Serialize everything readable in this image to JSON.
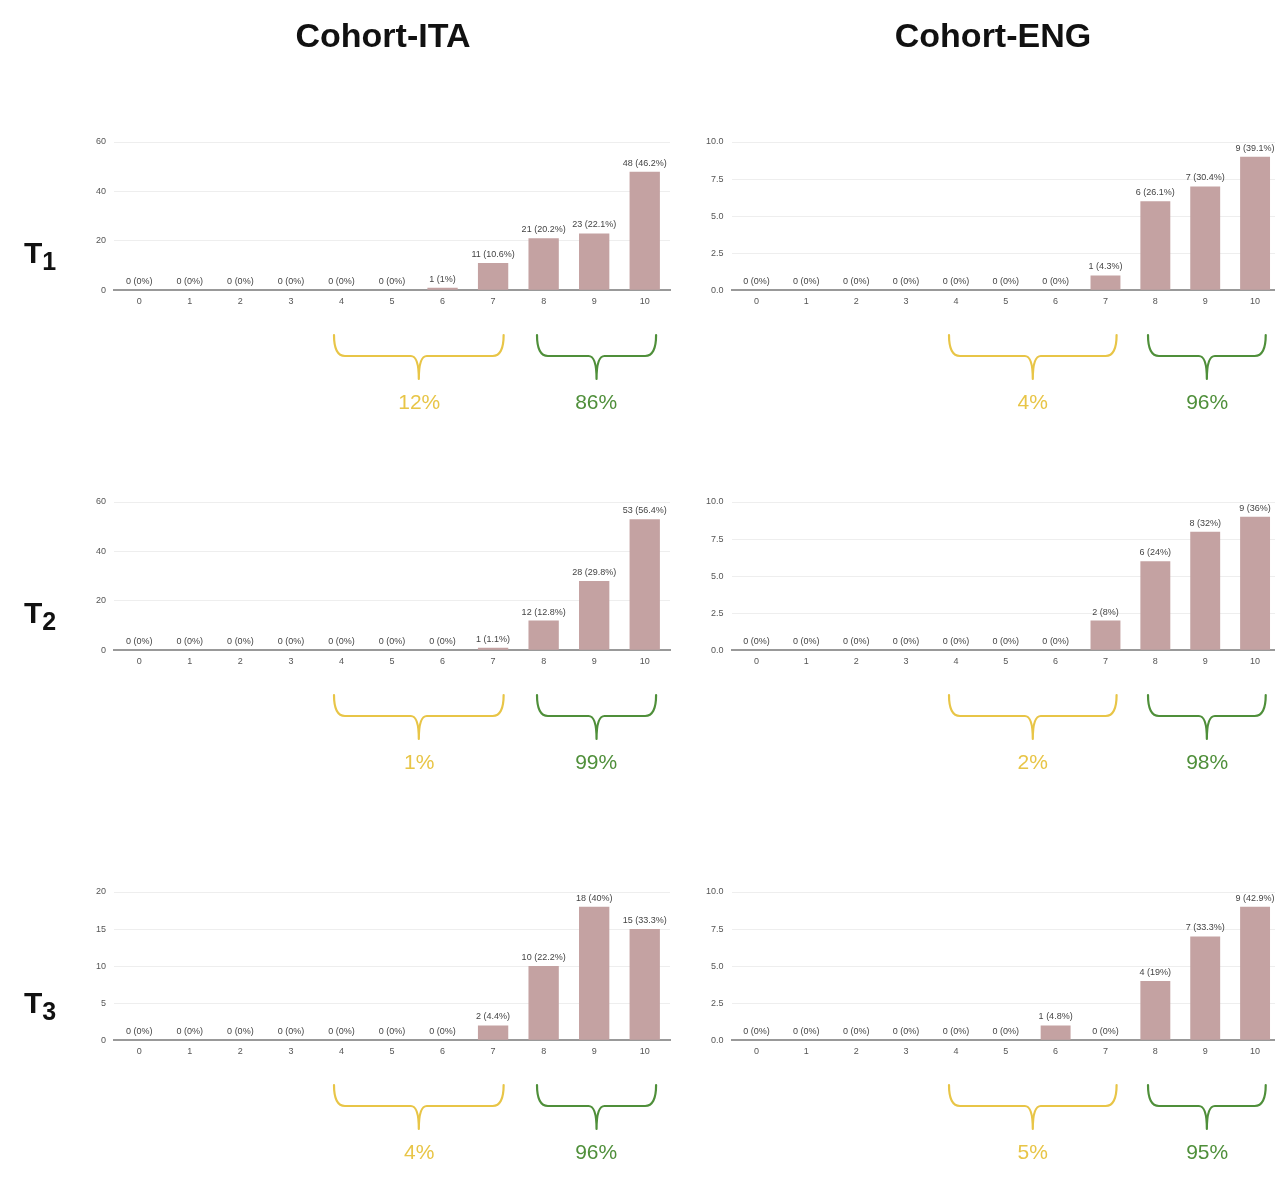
{
  "chart_data": [
    {
      "type": "bar",
      "title": "Cohort-ITA",
      "ylabel": "T$_{1}$",
      "categories": [
        "0",
        "1",
        "2",
        "3",
        "4",
        "5",
        "6",
        "7",
        "8",
        "9",
        "10"
      ],
      "color": "#c4a2a2",
      "values": [
        0,
        0,
        0,
        0,
        0,
        0,
        1,
        11,
        21,
        23,
        48
      ],
      "value_labels": [
        "0 (0%)",
        "0 (0%)",
        "0 (0%)",
        "0 (0%)",
        "0 (0%)",
        "0 (0%)",
        "1 (1%)",
        "11 (10.6%)",
        "21 (20.2%)",
        "23 (22.1%)",
        "48 (46.2%)"
      ],
      "ylim": [
        0,
        60
      ],
      "yticks": [
        0,
        20,
        40,
        60
      ],
      "grid": "y",
      "annotations": [
        "12%",
        "86%"
      ]
    },
    {
      "type": "bar",
      "title": "Cohort-ENG",
      "categories": [
        "0",
        "1",
        "2",
        "3",
        "4",
        "5",
        "6",
        "7",
        "8",
        "9",
        "10"
      ],
      "color": "#c4a2a2",
      "values": [
        0,
        0,
        0,
        0,
        0,
        0,
        0,
        1,
        6,
        7,
        9
      ],
      "value_labels": [
        "0 (0%)",
        "0 (0%)",
        "0 (0%)",
        "0 (0%)",
        "0 (0%)",
        "0 (0%)",
        "0 (0%)",
        "1 (4.3%)",
        "6 (26.1%)",
        "7 (30.4%)",
        "9 (39.1%)"
      ],
      "ylim": [
        0,
        10
      ],
      "yticks": [
        {
          "value": 0,
          "label": "0.0"
        },
        2.5,
        {
          "value": 5,
          "label": "5.0"
        },
        7.5,
        {
          "value": 10,
          "label": "10.0"
        }
      ],
      "grid": "y",
      "annotations": [
        "4%",
        "96%"
      ]
    },
    {
      "type": "bar",
      "ylabel": "T$_{2}$",
      "categories": [
        "0",
        "1",
        "2",
        "3",
        "4",
        "5",
        "6",
        "7",
        "8",
        "9",
        "10"
      ],
      "color": "#c4a2a2",
      "values": [
        0,
        0,
        0,
        0,
        0,
        0,
        0,
        1,
        12,
        28,
        53
      ],
      "value_labels": [
        "0 (0%)",
        "0 (0%)",
        "0 (0%)",
        "0 (0%)",
        "0 (0%)",
        "0 (0%)",
        "0 (0%)",
        "1 (1.1%)",
        "12 (12.8%)",
        "28 (29.8%)",
        "53 (56.4%)"
      ],
      "ylim": [
        0,
        60
      ],
      "yticks": [
        0,
        20,
        40,
        60
      ],
      "grid": "y",
      "annotations": [
        "1%",
        "99%"
      ]
    },
    {
      "type": "bar",
      "categories": [
        "0",
        "1",
        "2",
        "3",
        "4",
        "5",
        "6",
        "7",
        "8",
        "9",
        "10"
      ],
      "color": "#c4a2a2",
      "values": [
        0,
        0,
        0,
        0,
        0,
        0,
        0,
        2,
        6,
        8,
        9
      ],
      "value_labels": [
        "0 (0%)",
        "0 (0%)",
        "0 (0%)",
        "0 (0%)",
        "0 (0%)",
        "0 (0%)",
        "0 (0%)",
        "2 (8%)",
        "6 (24%)",
        "8 (32%)",
        "9 (36%)"
      ],
      "ylim": [
        0,
        10
      ],
      "yticks": [
        {
          "value": 0,
          "label": "0.0"
        },
        2.5,
        {
          "value": 5,
          "label": "5.0"
        },
        7.5,
        {
          "value": 10,
          "label": "10.0"
        }
      ],
      "grid": "y",
      "annotations": [
        "2%",
        "98%"
      ]
    },
    {
      "type": "bar",
      "ylabel": "T$_{3}$",
      "categories": [
        "0",
        "1",
        "2",
        "3",
        "4",
        "5",
        "6",
        "7",
        "8",
        "9",
        "10"
      ],
      "color": "#c4a2a2",
      "values": [
        0,
        0,
        0,
        0,
        0,
        0,
        0,
        2,
        10,
        18,
        15
      ],
      "value_labels": [
        "0 (0%)",
        "0 (0%)",
        "0 (0%)",
        "0 (0%)",
        "0 (0%)",
        "0 (0%)",
        "0 (0%)",
        "2 (4.4%)",
        "10 (22.2%)",
        "18 (40%)",
        "15 (33.3%)"
      ],
      "ylim": [
        0,
        20
      ],
      "yticks": [
        0,
        5,
        10,
        15,
        20
      ],
      "grid": "y",
      "annotations": [
        "4%",
        "96%"
      ]
    },
    {
      "type": "bar",
      "categories": [
        "0",
        "1",
        "2",
        "3",
        "4",
        "5",
        "6",
        "7",
        "8",
        "9",
        "10"
      ],
      "color": "#c4a2a2",
      "values": [
        0,
        0,
        0,
        0,
        0,
        0,
        1,
        0,
        4,
        7,
        9
      ],
      "value_labels": [
        "0 (0%)",
        "0 (0%)",
        "0 (0%)",
        "0 (0%)",
        "0 (0%)",
        "0 (0%)",
        "1 (4.8%)",
        "0 (0%)",
        "4 (19%)",
        "7 (33.3%)",
        "9 (42.9%)"
      ],
      "ylim": [
        0,
        10
      ],
      "yticks": [
        {
          "value": 0,
          "label": "0.0"
        },
        2.5,
        {
          "value": 5,
          "label": "5.0"
        },
        7.5,
        {
          "value": 10,
          "label": "10.0"
        }
      ],
      "grid": "y",
      "annotations": [
        "5%",
        "95%"
      ]
    }
  ]
}
